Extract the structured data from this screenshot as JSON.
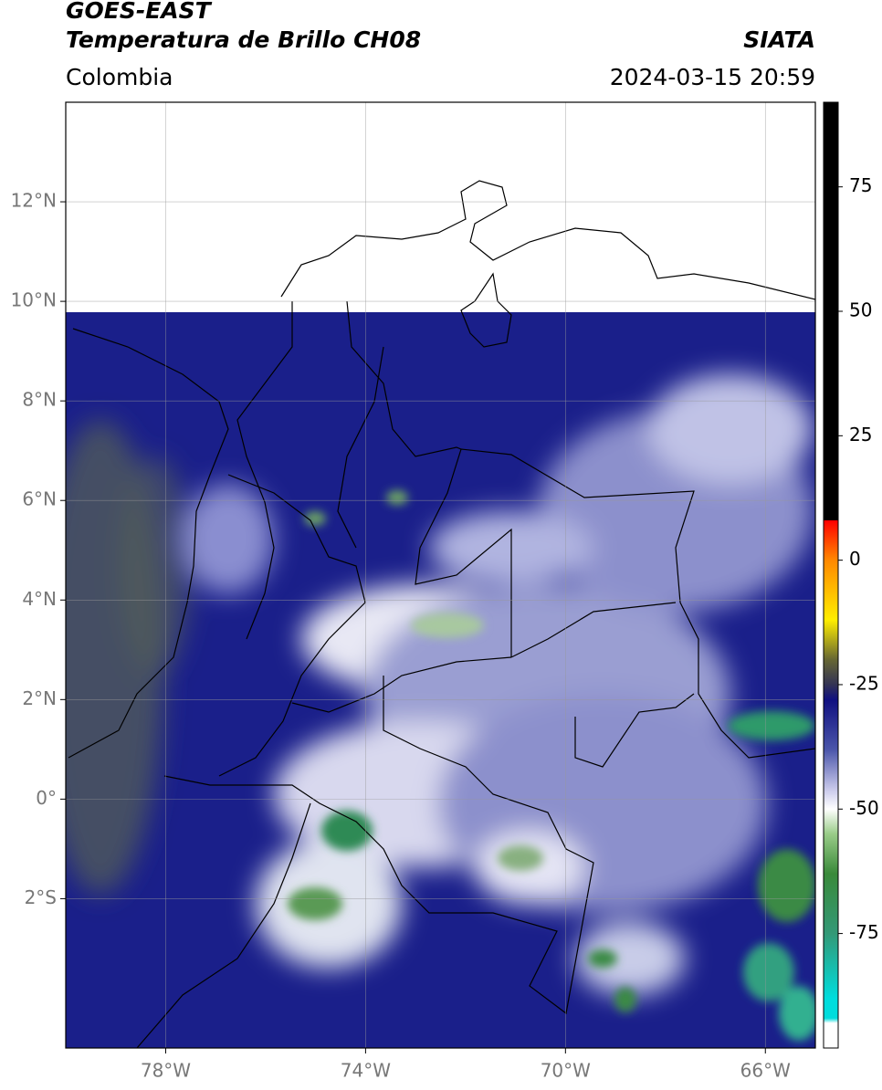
{
  "header": {
    "title": "GOES-EAST",
    "subtitle": "Temperatura de Brillo CH08",
    "source": "SIATA",
    "region": "Colombia",
    "datetime": "2024-03-15 20:59"
  },
  "chart_data": {
    "type": "map",
    "xlim": [
      -80,
      -65
    ],
    "ylim": [
      -5,
      14
    ],
    "xticks": [
      {
        "value": -78,
        "label": "78°W"
      },
      {
        "value": -74,
        "label": "74°W"
      },
      {
        "value": -70,
        "label": "70°W"
      },
      {
        "value": -66,
        "label": "66°W"
      }
    ],
    "yticks": [
      {
        "value": 12,
        "label": "12°N"
      },
      {
        "value": 10,
        "label": "10°N"
      },
      {
        "value": 8,
        "label": "8°N"
      },
      {
        "value": 6,
        "label": "6°N"
      },
      {
        "value": 4,
        "label": "4°N"
      },
      {
        "value": 2,
        "label": "2°N"
      },
      {
        "value": 0,
        "label": "0°"
      },
      {
        "value": -2,
        "label": "2°S"
      }
    ],
    "grid": true,
    "colorbar": {
      "lim": [
        -98,
        92
      ],
      "ticks": [
        75,
        50,
        25,
        0,
        -25,
        -50,
        -75
      ],
      "colorscale": [
        [
          92,
          "#000000"
        ],
        [
          8,
          "#000000"
        ],
        [
          8,
          "#ff0000"
        ],
        [
          0,
          "#ff8800"
        ],
        [
          -12,
          "#ffee00"
        ],
        [
          -20,
          "#666633"
        ],
        [
          -25,
          "#333355"
        ],
        [
          -28,
          "#101080"
        ],
        [
          -38,
          "#4a55aa"
        ],
        [
          -46,
          "#c8c8ea"
        ],
        [
          -50,
          "#ffffff"
        ],
        [
          -55,
          "#99cc88"
        ],
        [
          -63,
          "#3a8a3a"
        ],
        [
          -75,
          "#339977"
        ],
        [
          -88,
          "#00dddd"
        ],
        [
          -92,
          "#00dddd"
        ],
        [
          -93,
          "#ffffff"
        ],
        [
          -98,
          "#ffffff"
        ]
      ]
    }
  }
}
